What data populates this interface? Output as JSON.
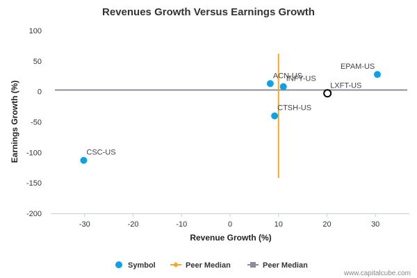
{
  "chart_data": {
    "type": "scatter",
    "title": "Revenues Growth Versus Earnings Growth",
    "xlabel": "Revenue Growth (%)",
    "ylabel": "Earnings Growth (%)",
    "xlim": [
      -37,
      37
    ],
    "ylim": [
      -200,
      100
    ],
    "xticks": [
      "-30",
      "-20",
      "-10",
      "0",
      "10",
      "20",
      "30"
    ],
    "yticks": [
      "100",
      "50",
      "0",
      "-50",
      "-100",
      "-150",
      "-200"
    ],
    "grid": false,
    "legend_position": "bottom",
    "series": [
      {
        "name": "Symbol",
        "color": "#0da2e7",
        "points": [
          {
            "label": "ACN-US",
            "x": 8.3,
            "y": 13
          },
          {
            "label": "INFY-US",
            "x": 11,
            "y": 8
          },
          {
            "label": "EPAM-US",
            "x": 30.4,
            "y": 28
          },
          {
            "label": "CTSH-US",
            "x": 9.2,
            "y": -40
          },
          {
            "label": "CSC-US",
            "x": -30.2,
            "y": -113
          }
        ]
      },
      {
        "name": "",
        "color": "#000000",
        "hollow": true,
        "points": [
          {
            "label": "LXFT-US",
            "x": 20.1,
            "y": -3
          }
        ]
      }
    ],
    "peer_median_x": {
      "name": "Peer Median",
      "value": 10,
      "y_range": [
        -142,
        62
      ],
      "color": "#f5a623"
    },
    "peer_median_y": {
      "name": "Peer Median",
      "value": 2.5,
      "color": "#8c8c9c"
    }
  },
  "credit": "www.capitalcube.com"
}
